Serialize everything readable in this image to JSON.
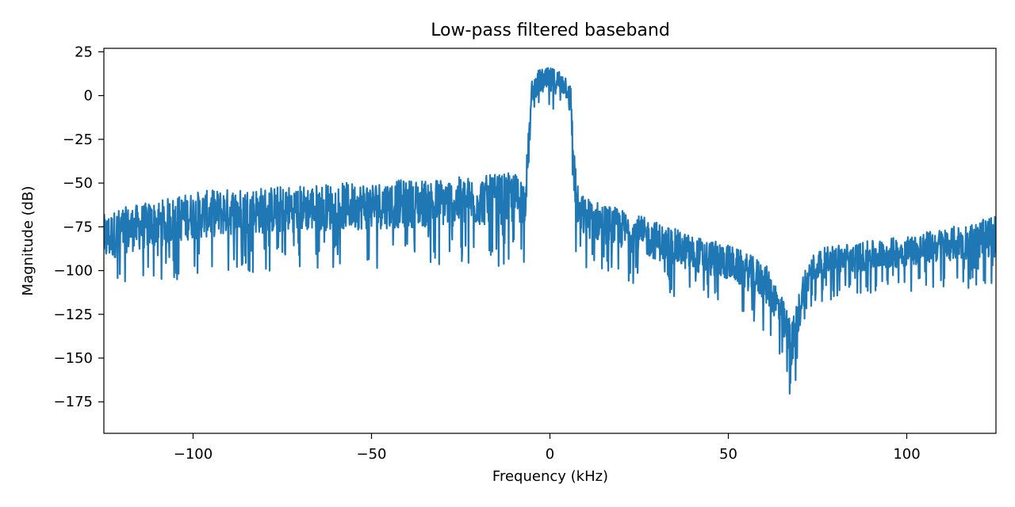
{
  "chart_data": {
    "type": "line",
    "title": "Low-pass filtered baseband",
    "xlabel": "Frequency (kHz)",
    "ylabel": "Magnitude (dB)",
    "xlim": [
      -125,
      125
    ],
    "ylim": [
      -193,
      27
    ],
    "xticks": [
      -100,
      -50,
      0,
      50,
      100
    ],
    "xtick_labels": [
      "−100",
      "−50",
      "0",
      "50",
      "100"
    ],
    "yticks": [
      25,
      0,
      -25,
      -50,
      -75,
      -100,
      -125,
      -150,
      -175
    ],
    "ytick_labels": [
      "25",
      "0",
      "−25",
      "−50",
      "−75",
      "−100",
      "−125",
      "−150",
      "−175"
    ],
    "grid": false,
    "legend": "none",
    "series": [
      {
        "color": "#1f77b4",
        "envelope": {
          "x": [
            -125,
            -120,
            -110,
            -100,
            -90,
            -80,
            -70,
            -60,
            -50,
            -40,
            -30,
            -20,
            -10,
            -8,
            -7,
            -6,
            -5,
            -3,
            0,
            3,
            5,
            6,
            7,
            8,
            10,
            20,
            30,
            40,
            50,
            55,
            60,
            63,
            65,
            67,
            68,
            69,
            71,
            73,
            75,
            80,
            90,
            100,
            110,
            120,
            125
          ],
          "upper": [
            -68,
            -64,
            -60,
            -55,
            -53,
            -52,
            -51,
            -50,
            -49,
            -48,
            -47,
            -46,
            -44,
            -45,
            -48,
            -20,
            10,
            15,
            16,
            15,
            12,
            5,
            -35,
            -55,
            -58,
            -65,
            -72,
            -80,
            -85,
            -90,
            -95,
            -105,
            -115,
            -125,
            -128,
            -120,
            -100,
            -92,
            -88,
            -85,
            -83,
            -80,
            -76,
            -72,
            -68
          ],
          "lower": [
            -120,
            -112,
            -108,
            -104,
            -102,
            -101,
            -100,
            -99,
            -99,
            -98,
            -98,
            -98,
            -97,
            -96,
            -95,
            -60,
            -15,
            -10,
            -12,
            -10,
            -15,
            -40,
            -95,
            -100,
            -100,
            -106,
            -112,
            -118,
            -122,
            -128,
            -135,
            -145,
            -155,
            -170,
            -180,
            -168,
            -138,
            -125,
            -120,
            -116,
            -114,
            -112,
            -110,
            -110,
            -112
          ]
        }
      }
    ]
  }
}
